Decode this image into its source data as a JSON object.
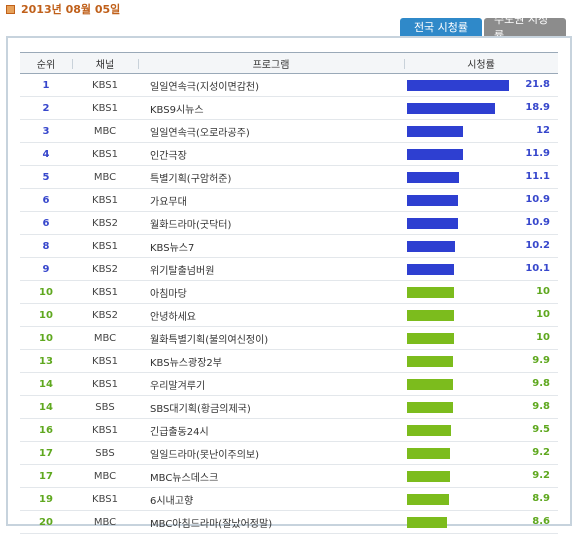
{
  "date": "2013년 08월 05일",
  "tabs": {
    "national": "전국 시청률",
    "metro": "수도권 시청률"
  },
  "headers": {
    "rank": "순위",
    "channel": "채널",
    "program": "프로그램",
    "rating": "시청률"
  },
  "colors": {
    "blue": "#2e3fd1",
    "green": "#7cbc1d"
  },
  "max_rating": 21.8,
  "rows": [
    {
      "rank": "1",
      "channel": "KBS1",
      "program": "일일연속극(지성이면감천)",
      "rating": "21.8",
      "value": 21.8,
      "color": "blue"
    },
    {
      "rank": "2",
      "channel": "KBS1",
      "program": "KBS9시뉴스",
      "rating": "18.9",
      "value": 18.9,
      "color": "blue"
    },
    {
      "rank": "3",
      "channel": "MBC",
      "program": "일일연속극(오로라공주)",
      "rating": "12",
      "value": 12,
      "color": "blue"
    },
    {
      "rank": "4",
      "channel": "KBS1",
      "program": "인간극장",
      "rating": "11.9",
      "value": 11.9,
      "color": "blue"
    },
    {
      "rank": "5",
      "channel": "MBC",
      "program": "특별기획(구암허준)",
      "rating": "11.1",
      "value": 11.1,
      "color": "blue"
    },
    {
      "rank": "6",
      "channel": "KBS1",
      "program": "가요무대",
      "rating": "10.9",
      "value": 10.9,
      "color": "blue"
    },
    {
      "rank": "6",
      "channel": "KBS2",
      "program": "월화드라마(굿닥터)",
      "rating": "10.9",
      "value": 10.9,
      "color": "blue"
    },
    {
      "rank": "8",
      "channel": "KBS1",
      "program": "KBS뉴스7",
      "rating": "10.2",
      "value": 10.2,
      "color": "blue"
    },
    {
      "rank": "9",
      "channel": "KBS2",
      "program": "위기탈출넘버원",
      "rating": "10.1",
      "value": 10.1,
      "color": "blue"
    },
    {
      "rank": "10",
      "channel": "KBS1",
      "program": "아침마당",
      "rating": "10",
      "value": 10,
      "color": "green"
    },
    {
      "rank": "10",
      "channel": "KBS2",
      "program": "안녕하세요",
      "rating": "10",
      "value": 10,
      "color": "green"
    },
    {
      "rank": "10",
      "channel": "MBC",
      "program": "월화특별기획(불의여신정이)",
      "rating": "10",
      "value": 10,
      "color": "green"
    },
    {
      "rank": "13",
      "channel": "KBS1",
      "program": "KBS뉴스광장2부",
      "rating": "9.9",
      "value": 9.9,
      "color": "green"
    },
    {
      "rank": "14",
      "channel": "KBS1",
      "program": "우리말겨루기",
      "rating": "9.8",
      "value": 9.8,
      "color": "green"
    },
    {
      "rank": "14",
      "channel": "SBS",
      "program": "SBS대기획(황금의제국)",
      "rating": "9.8",
      "value": 9.8,
      "color": "green"
    },
    {
      "rank": "16",
      "channel": "KBS1",
      "program": "긴급출동24시",
      "rating": "9.5",
      "value": 9.5,
      "color": "green"
    },
    {
      "rank": "17",
      "channel": "SBS",
      "program": "일일드라마(못난이주의보)",
      "rating": "9.2",
      "value": 9.2,
      "color": "green"
    },
    {
      "rank": "17",
      "channel": "MBC",
      "program": "MBC뉴스데스크",
      "rating": "9.2",
      "value": 9.2,
      "color": "green"
    },
    {
      "rank": "19",
      "channel": "KBS1",
      "program": "6시내고향",
      "rating": "8.9",
      "value": 8.9,
      "color": "green"
    },
    {
      "rank": "20",
      "channel": "MBC",
      "program": "MBC아침드라마(잘났어정말)",
      "rating": "8.6",
      "value": 8.6,
      "color": "green"
    }
  ]
}
